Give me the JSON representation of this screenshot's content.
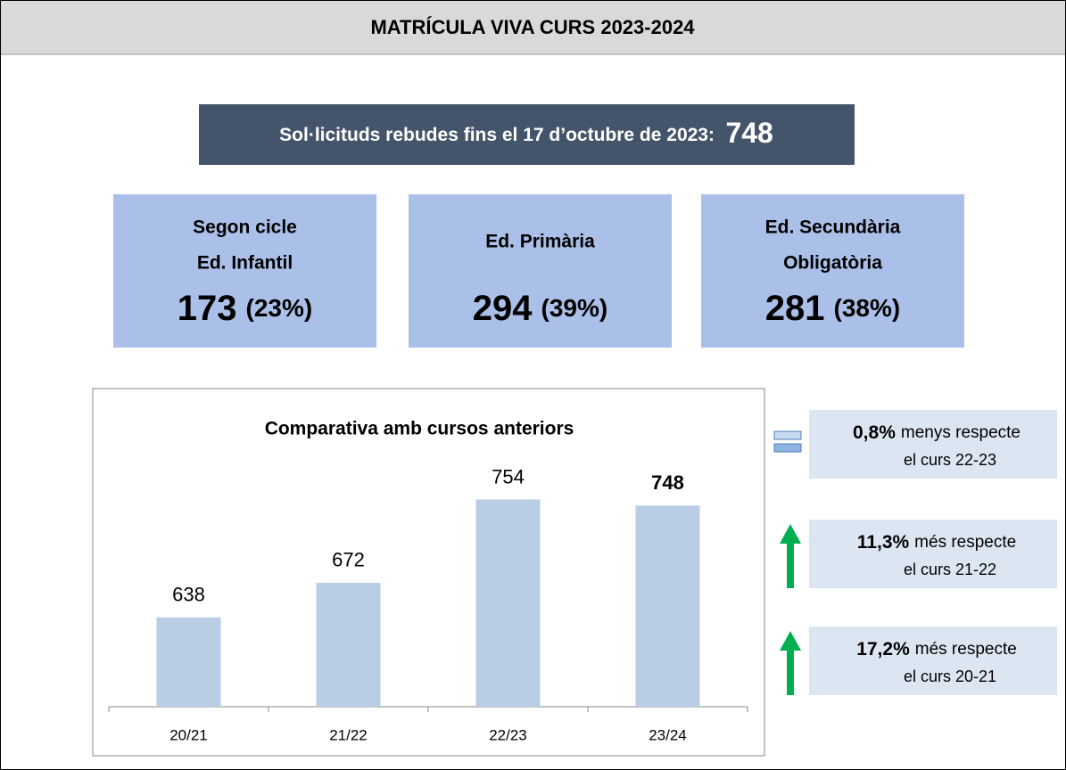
{
  "header": {
    "title": "MATRÍCULA VIVA CURS 2023-2024"
  },
  "summary": {
    "label": "Sol·licituds rebudes fins el 17 d’octubre de 2023:",
    "value": 748
  },
  "boxes": [
    {
      "lines": [
        "Segon cicle",
        "Ed. Infantil"
      ],
      "value": 173,
      "percent": "(23%)"
    },
    {
      "lines": [
        "Ed. Primària"
      ],
      "value": 294,
      "percent": "(39%)"
    },
    {
      "lines": [
        "Ed. Secundària",
        "Obligatòria"
      ],
      "value": 281,
      "percent": "(38%)"
    }
  ],
  "chart_data": {
    "type": "bar",
    "title": "Comparativa amb cursos anteriors",
    "categories": [
      "20/21",
      "21/22",
      "22/23",
      "23/24"
    ],
    "values": [
      638,
      672,
      754,
      748
    ],
    "color": "#b9cde5",
    "ylim": [
      550,
      800
    ]
  },
  "comparisons": [
    {
      "percent": "0,8%",
      "text": "menys  respecte",
      "detail": "el curs 22-23",
      "trend": "down"
    },
    {
      "percent": "11,3%",
      "text": "més  respecte",
      "detail": "el curs 21-22",
      "trend": "up"
    },
    {
      "percent": "17,2%",
      "text": "més  respecte",
      "detail": "el curs 20-21",
      "trend": "up"
    }
  ]
}
